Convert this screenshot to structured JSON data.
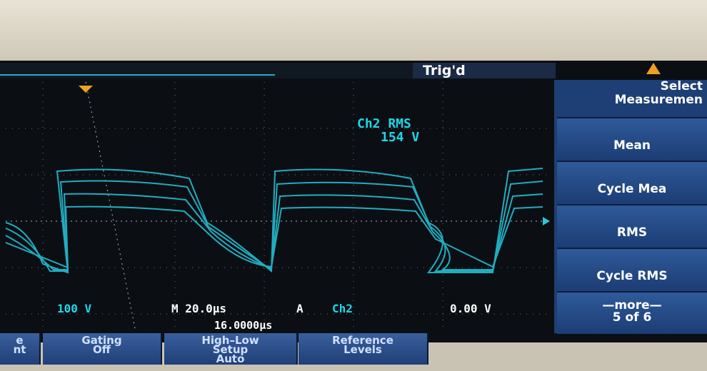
{
  "status": {
    "trigger": "Trig'd"
  },
  "readout": {
    "measurement": "Ch2 RMS",
    "value": "154 V"
  },
  "scale": {
    "channel_volts": "100 V",
    "timebase": "M 20.0µs",
    "trigger_source": "A",
    "trigger_channel": "Ch2",
    "trigger_level": "0.00 V",
    "trigger_position": "16.0000µs"
  },
  "side_menu": {
    "title": [
      "Select",
      "Measuremen"
    ],
    "items": [
      {
        "label": "Mean"
      },
      {
        "label": "Cycle Mea"
      },
      {
        "label": "RMS"
      },
      {
        "label": "Cycle RMS"
      },
      {
        "label": [
          "—more—",
          "5 of 6"
        ]
      }
    ]
  },
  "bottom_menu": [
    {
      "label": [
        "e",
        "nt"
      ]
    },
    {
      "label": [
        "Gating",
        "Off"
      ]
    },
    {
      "label": [
        "High–Low",
        "Setup",
        "Auto"
      ]
    },
    {
      "label": [
        "Reference",
        "Levels"
      ]
    }
  ]
}
